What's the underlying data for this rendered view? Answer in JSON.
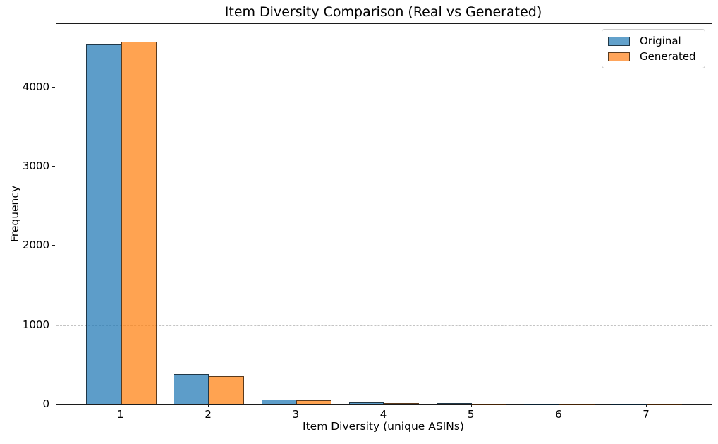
{
  "title": "Item Diversity Comparison (Real vs Generated)",
  "chart_data": {
    "type": "bar",
    "title": "Item Diversity Comparison (Real vs Generated)",
    "xlabel": "Item Diversity (unique ASINs)",
    "ylabel": "Frequency",
    "categories": [
      1,
      2,
      3,
      4,
      5,
      6,
      7
    ],
    "series": [
      {
        "name": "Original",
        "fill_color": "rgba(31,119,180,0.72)",
        "fill_hex_on_white": "#62a1cb",
        "edge_color": "rgba(0,0,0,0.65)",
        "values": [
          4540,
          383,
          66,
          30,
          14,
          10,
          2
        ]
      },
      {
        "name": "Generated",
        "fill_color": "rgba(255,127,14,0.72)",
        "fill_hex_on_white": "#ffa55b",
        "edge_color": "rgba(0,0,0,0.65)",
        "values": [
          4580,
          356,
          50,
          14,
          8,
          3,
          1
        ]
      }
    ],
    "bar_width": 0.4,
    "xlim": [
      0.26,
      7.74
    ],
    "ylim": [
      0,
      4800
    ],
    "xticks": [
      1,
      2,
      3,
      4,
      5,
      6,
      7
    ],
    "yticks": [
      0,
      1000,
      2000,
      3000,
      4000
    ],
    "grid": "horizontal-dashed",
    "grid_color": "#c4c4c4",
    "legend_position": "upper-right"
  }
}
